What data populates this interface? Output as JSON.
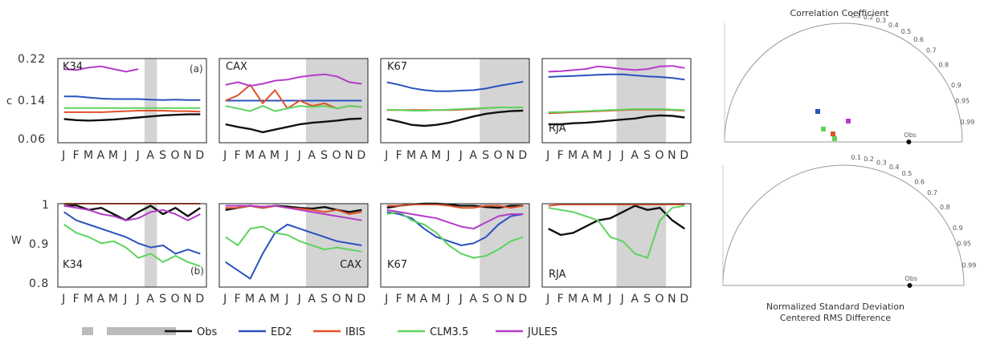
{
  "row_top": {
    "y_ticks": [
      "0.22",
      "0.14",
      "0.06"
    ],
    "y_axis_label": "c",
    "panel_tag": "(a)"
  },
  "row_bottom": {
    "y_ticks": [
      "1",
      "0.9",
      "0.8"
    ],
    "y_axis_label": "W",
    "panel_tag": "(b)"
  },
  "month_labels": [
    "J",
    "F",
    "M",
    "A",
    "M",
    "J",
    "J",
    "A",
    "S",
    "O",
    "N",
    "D"
  ],
  "legend": [
    {
      "name": "Obs",
      "color": "#111111"
    },
    {
      "name": "ED2",
      "color": "#2a52be"
    },
    {
      "name": "IBIS",
      "color": "#e0522a"
    },
    {
      "name": "CLM3.5",
      "color": "#5ed35e"
    },
    {
      "name": "JULES",
      "color": "#b43cc8"
    }
  ],
  "taylor": {
    "top_title": "Correlation Coefficient",
    "bottom_title_1": "Normalized Standard Deviation",
    "bottom_title_2": "Centered RMS Difference",
    "corr_ticks": [
      "0.1",
      "0.2",
      "0.3",
      "0.4",
      "0.5",
      "0.6",
      "0.7",
      "0.8",
      "0.9",
      "0.95",
      "0.99"
    ],
    "obs_label": "Obs"
  },
  "chart_data": [
    {
      "type": "line",
      "panel": "top-K34",
      "site": "K34",
      "xlabel": "",
      "ylabel": "c",
      "ylim": [
        0.06,
        0.22
      ],
      "x": [
        "J",
        "F",
        "M",
        "A",
        "M",
        "J",
        "J",
        "A",
        "S",
        "O",
        "N",
        "D"
      ],
      "shaded_months": [
        "A"
      ],
      "series": [
        {
          "name": "Obs",
          "values": [
            0.105,
            0.103,
            0.102,
            0.103,
            0.104,
            0.106,
            0.108,
            0.11,
            0.112,
            0.113,
            0.114,
            0.114
          ]
        },
        {
          "name": "ED2",
          "values": [
            0.148,
            0.148,
            0.146,
            0.144,
            0.143,
            0.143,
            0.143,
            0.142,
            0.141,
            0.142,
            0.141,
            0.141
          ]
        },
        {
          "name": "IBIS",
          "values": [
            0.118,
            0.118,
            0.118,
            0.118,
            0.119,
            0.12,
            0.121,
            0.121,
            0.121,
            0.12,
            0.12,
            0.119
          ]
        },
        {
          "name": "CLM3.5",
          "values": [
            0.126,
            0.126,
            0.126,
            0.126,
            0.126,
            0.126,
            0.126,
            0.126,
            0.126,
            0.126,
            0.126,
            0.126
          ]
        },
        {
          "name": "JULES",
          "values": [
            0.2,
            0.198,
            0.203,
            0.205,
            0.2,
            0.195,
            0.2,
            null,
            null,
            null,
            null,
            null
          ]
        }
      ]
    },
    {
      "type": "line",
      "panel": "top-CAX",
      "site": "CAX",
      "xlabel": "",
      "ylabel": "",
      "ylim": [
        0.06,
        0.22
      ],
      "x": [
        "J",
        "F",
        "M",
        "A",
        "M",
        "J",
        "J",
        "A",
        "S",
        "O",
        "N",
        "D"
      ],
      "shaded_months": [
        "A",
        "S",
        "O",
        "N",
        "D"
      ],
      "series": [
        {
          "name": "Obs",
          "values": [
            0.095,
            0.09,
            0.086,
            0.08,
            0.085,
            0.09,
            0.095,
            0.098,
            0.1,
            0.102,
            0.105,
            0.106
          ]
        },
        {
          "name": "ED2",
          "values": [
            0.14,
            0.14,
            0.14,
            0.14,
            0.14,
            0.14,
            0.14,
            0.14,
            0.14,
            0.14,
            0.14,
            0.14
          ]
        },
        {
          "name": "IBIS",
          "values": [
            0.14,
            0.15,
            0.17,
            0.135,
            0.16,
            0.125,
            0.14,
            0.13,
            0.135,
            0.125,
            0.13,
            0.128
          ]
        },
        {
          "name": "CLM3.5",
          "values": [
            0.13,
            0.125,
            0.12,
            0.13,
            0.12,
            0.125,
            0.13,
            0.128,
            0.13,
            0.125,
            0.13,
            0.128
          ]
        },
        {
          "name": "JULES",
          "values": [
            0.17,
            0.175,
            0.168,
            0.172,
            0.178,
            0.18,
            0.185,
            0.188,
            0.19,
            0.186,
            0.175,
            0.172
          ]
        }
      ]
    },
    {
      "type": "line",
      "panel": "top-K67",
      "site": "K67",
      "xlabel": "",
      "ylabel": "",
      "ylim": [
        0.06,
        0.22
      ],
      "x": [
        "J",
        "F",
        "M",
        "A",
        "M",
        "J",
        "J",
        "A",
        "S",
        "O",
        "N",
        "D"
      ],
      "shaded_months": [
        "S",
        "O",
        "N",
        "D"
      ],
      "series": [
        {
          "name": "Obs",
          "values": [
            0.105,
            0.1,
            0.094,
            0.092,
            0.094,
            0.098,
            0.104,
            0.11,
            0.115,
            0.118,
            0.12,
            0.121
          ]
        },
        {
          "name": "ED2",
          "values": [
            0.175,
            0.17,
            0.164,
            0.16,
            0.158,
            0.158,
            0.159,
            0.16,
            0.163,
            0.168,
            0.172,
            0.176
          ]
        },
        {
          "name": "IBIS",
          "values": [
            0.122,
            0.122,
            0.122,
            0.122,
            0.122,
            0.122,
            0.123,
            0.124,
            0.126,
            0.127,
            0.127,
            0.127
          ]
        },
        {
          "name": "CLM3.5",
          "values": [
            0.123,
            0.122,
            0.121,
            0.121,
            0.122,
            0.123,
            0.124,
            0.125,
            0.126,
            0.127,
            0.127,
            0.127
          ]
        }
      ]
    },
    {
      "type": "line",
      "panel": "top-RJA",
      "site": "RJA",
      "xlabel": "",
      "ylabel": "",
      "ylim": [
        0.06,
        0.22
      ],
      "x": [
        "J",
        "F",
        "M",
        "A",
        "M",
        "J",
        "J",
        "A",
        "S",
        "O",
        "N",
        "D"
      ],
      "shaded_months": [
        "J",
        "A",
        "S",
        "O"
      ],
      "series": [
        {
          "name": "Obs",
          "values": [
            0.095,
            0.095,
            0.097,
            0.098,
            0.1,
            0.102,
            0.104,
            0.106,
            0.11,
            0.112,
            0.111,
            0.108
          ]
        },
        {
          "name": "ED2",
          "values": [
            0.185,
            0.186,
            0.187,
            0.188,
            0.189,
            0.19,
            0.19,
            0.188,
            0.186,
            0.185,
            0.183,
            0.18
          ]
        },
        {
          "name": "IBIS",
          "values": [
            0.116,
            0.117,
            0.118,
            0.119,
            0.12,
            0.121,
            0.122,
            0.123,
            0.123,
            0.123,
            0.122,
            0.121
          ]
        },
        {
          "name": "CLM3.5",
          "values": [
            0.118,
            0.118,
            0.119,
            0.12,
            0.121,
            0.122,
            0.123,
            0.124,
            0.124,
            0.124,
            0.123,
            0.122
          ]
        },
        {
          "name": "JULES",
          "values": [
            0.195,
            0.196,
            0.198,
            0.2,
            0.205,
            0.203,
            0.2,
            0.198,
            0.2,
            0.205,
            0.206,
            0.202
          ]
        }
      ]
    },
    {
      "type": "line",
      "panel": "bottom-K34",
      "site": "K34",
      "xlabel": "",
      "ylabel": "W",
      "ylim": [
        0.8,
        1.0
      ],
      "x": [
        "J",
        "F",
        "M",
        "A",
        "M",
        "J",
        "J",
        "A",
        "S",
        "O",
        "N",
        "D"
      ],
      "shaded_months": [
        "A"
      ],
      "series": [
        {
          "name": "Obs",
          "values": [
            0.995,
            0.996,
            0.985,
            0.99,
            0.975,
            0.96,
            0.98,
            0.995,
            0.975,
            0.99,
            0.97,
            0.99
          ]
        },
        {
          "name": "ED2",
          "values": [
            0.98,
            0.96,
            0.95,
            0.94,
            0.93,
            0.92,
            0.905,
            0.895,
            0.9,
            0.88,
            0.89,
            0.88
          ]
        },
        {
          "name": "IBIS",
          "values": [
            1.0,
            1.0,
            1.0,
            1.0,
            1.0,
            1.0,
            1.0,
            1.0,
            1.0,
            1.0,
            1.0,
            1.0
          ]
        },
        {
          "name": "CLM3.5",
          "values": [
            0.95,
            0.93,
            0.92,
            0.905,
            0.91,
            0.895,
            0.87,
            0.88,
            0.86,
            0.875,
            0.86,
            0.85
          ]
        },
        {
          "name": "JULES",
          "values": [
            0.995,
            0.99,
            0.985,
            0.975,
            0.97,
            0.96,
            0.965,
            0.98,
            0.985,
            0.975,
            0.96,
            0.975
          ]
        }
      ]
    },
    {
      "type": "line",
      "panel": "bottom-CAX",
      "site": "CAX",
      "xlabel": "",
      "ylabel": "",
      "ylim": [
        0.8,
        1.0
      ],
      "x": [
        "J",
        "F",
        "M",
        "A",
        "M",
        "J",
        "J",
        "A",
        "S",
        "O",
        "N",
        "D"
      ],
      "shaded_months": [
        "A",
        "S",
        "O",
        "N",
        "D"
      ],
      "series": [
        {
          "name": "Obs",
          "values": [
            0.985,
            0.99,
            0.995,
            0.99,
            0.995,
            0.993,
            0.99,
            0.988,
            0.992,
            0.985,
            0.98,
            0.985
          ]
        },
        {
          "name": "ED2",
          "values": [
            0.86,
            0.84,
            0.82,
            0.88,
            0.93,
            0.95,
            0.94,
            0.93,
            0.92,
            0.91,
            0.905,
            0.9
          ]
        },
        {
          "name": "IBIS",
          "values": [
            0.99,
            0.99,
            0.995,
            0.99,
            0.995,
            0.99,
            0.988,
            0.985,
            0.98,
            0.985,
            0.975,
            0.98
          ]
        },
        {
          "name": "CLM3.5",
          "values": [
            0.92,
            0.9,
            0.94,
            0.945,
            0.93,
            0.925,
            0.91,
            0.9,
            0.89,
            0.895,
            0.89,
            0.885
          ]
        },
        {
          "name": "JULES",
          "values": [
            0.995,
            0.995,
            0.995,
            0.993,
            0.995,
            0.99,
            0.985,
            0.98,
            0.975,
            0.97,
            0.965,
            0.96
          ]
        }
      ]
    },
    {
      "type": "line",
      "panel": "bottom-K67",
      "site": "K67",
      "xlabel": "",
      "ylabel": "",
      "ylim": [
        0.8,
        1.0
      ],
      "x": [
        "J",
        "F",
        "M",
        "A",
        "M",
        "J",
        "J",
        "A",
        "S",
        "O",
        "N",
        "D"
      ],
      "shaded_months": [
        "S",
        "O",
        "N",
        "D"
      ],
      "series": [
        {
          "name": "Obs",
          "values": [
            0.99,
            0.995,
            0.998,
            1.0,
            1.0,
            0.998,
            0.995,
            0.995,
            0.992,
            0.99,
            0.995,
            0.995
          ]
        },
        {
          "name": "ED2",
          "values": [
            0.98,
            0.975,
            0.965,
            0.94,
            0.92,
            0.91,
            0.9,
            0.905,
            0.92,
            0.95,
            0.97,
            0.975
          ]
        },
        {
          "name": "IBIS",
          "values": [
            0.995,
            0.995,
            0.998,
            0.998,
            0.998,
            0.995,
            0.99,
            0.99,
            0.995,
            0.995,
            0.99,
            0.995
          ]
        },
        {
          "name": "CLM3.5",
          "values": [
            0.975,
            0.98,
            0.96,
            0.95,
            0.93,
            0.9,
            0.88,
            0.87,
            0.875,
            0.89,
            0.91,
            0.92
          ]
        },
        {
          "name": "JULES",
          "values": [
            0.985,
            0.98,
            0.975,
            0.97,
            0.965,
            0.955,
            0.945,
            0.94,
            0.955,
            0.97,
            0.975,
            0.975
          ]
        }
      ]
    },
    {
      "type": "line",
      "panel": "bottom-RJA",
      "site": "RJA",
      "xlabel": "",
      "ylabel": "",
      "ylim": [
        0.8,
        1.0
      ],
      "x": [
        "J",
        "F",
        "M",
        "A",
        "M",
        "J",
        "J",
        "A",
        "S",
        "O",
        "N",
        "D"
      ],
      "shaded_months": [
        "J",
        "A",
        "S",
        "O"
      ],
      "series": [
        {
          "name": "Obs",
          "values": [
            0.94,
            0.925,
            0.93,
            0.945,
            0.96,
            0.965,
            0.98,
            0.995,
            0.985,
            0.99,
            0.96,
            0.94
          ]
        },
        {
          "name": "IBIS",
          "values": [
            0.995,
            0.998,
            0.998,
            0.998,
            0.998,
            0.998,
            0.998,
            0.998,
            0.998,
            0.998,
            0.998,
            0.998
          ]
        },
        {
          "name": "CLM3.5",
          "values": [
            0.99,
            0.985,
            0.98,
            0.97,
            0.96,
            0.92,
            0.91,
            0.88,
            0.87,
            0.96,
            0.99,
            0.995
          ]
        }
      ]
    }
  ]
}
